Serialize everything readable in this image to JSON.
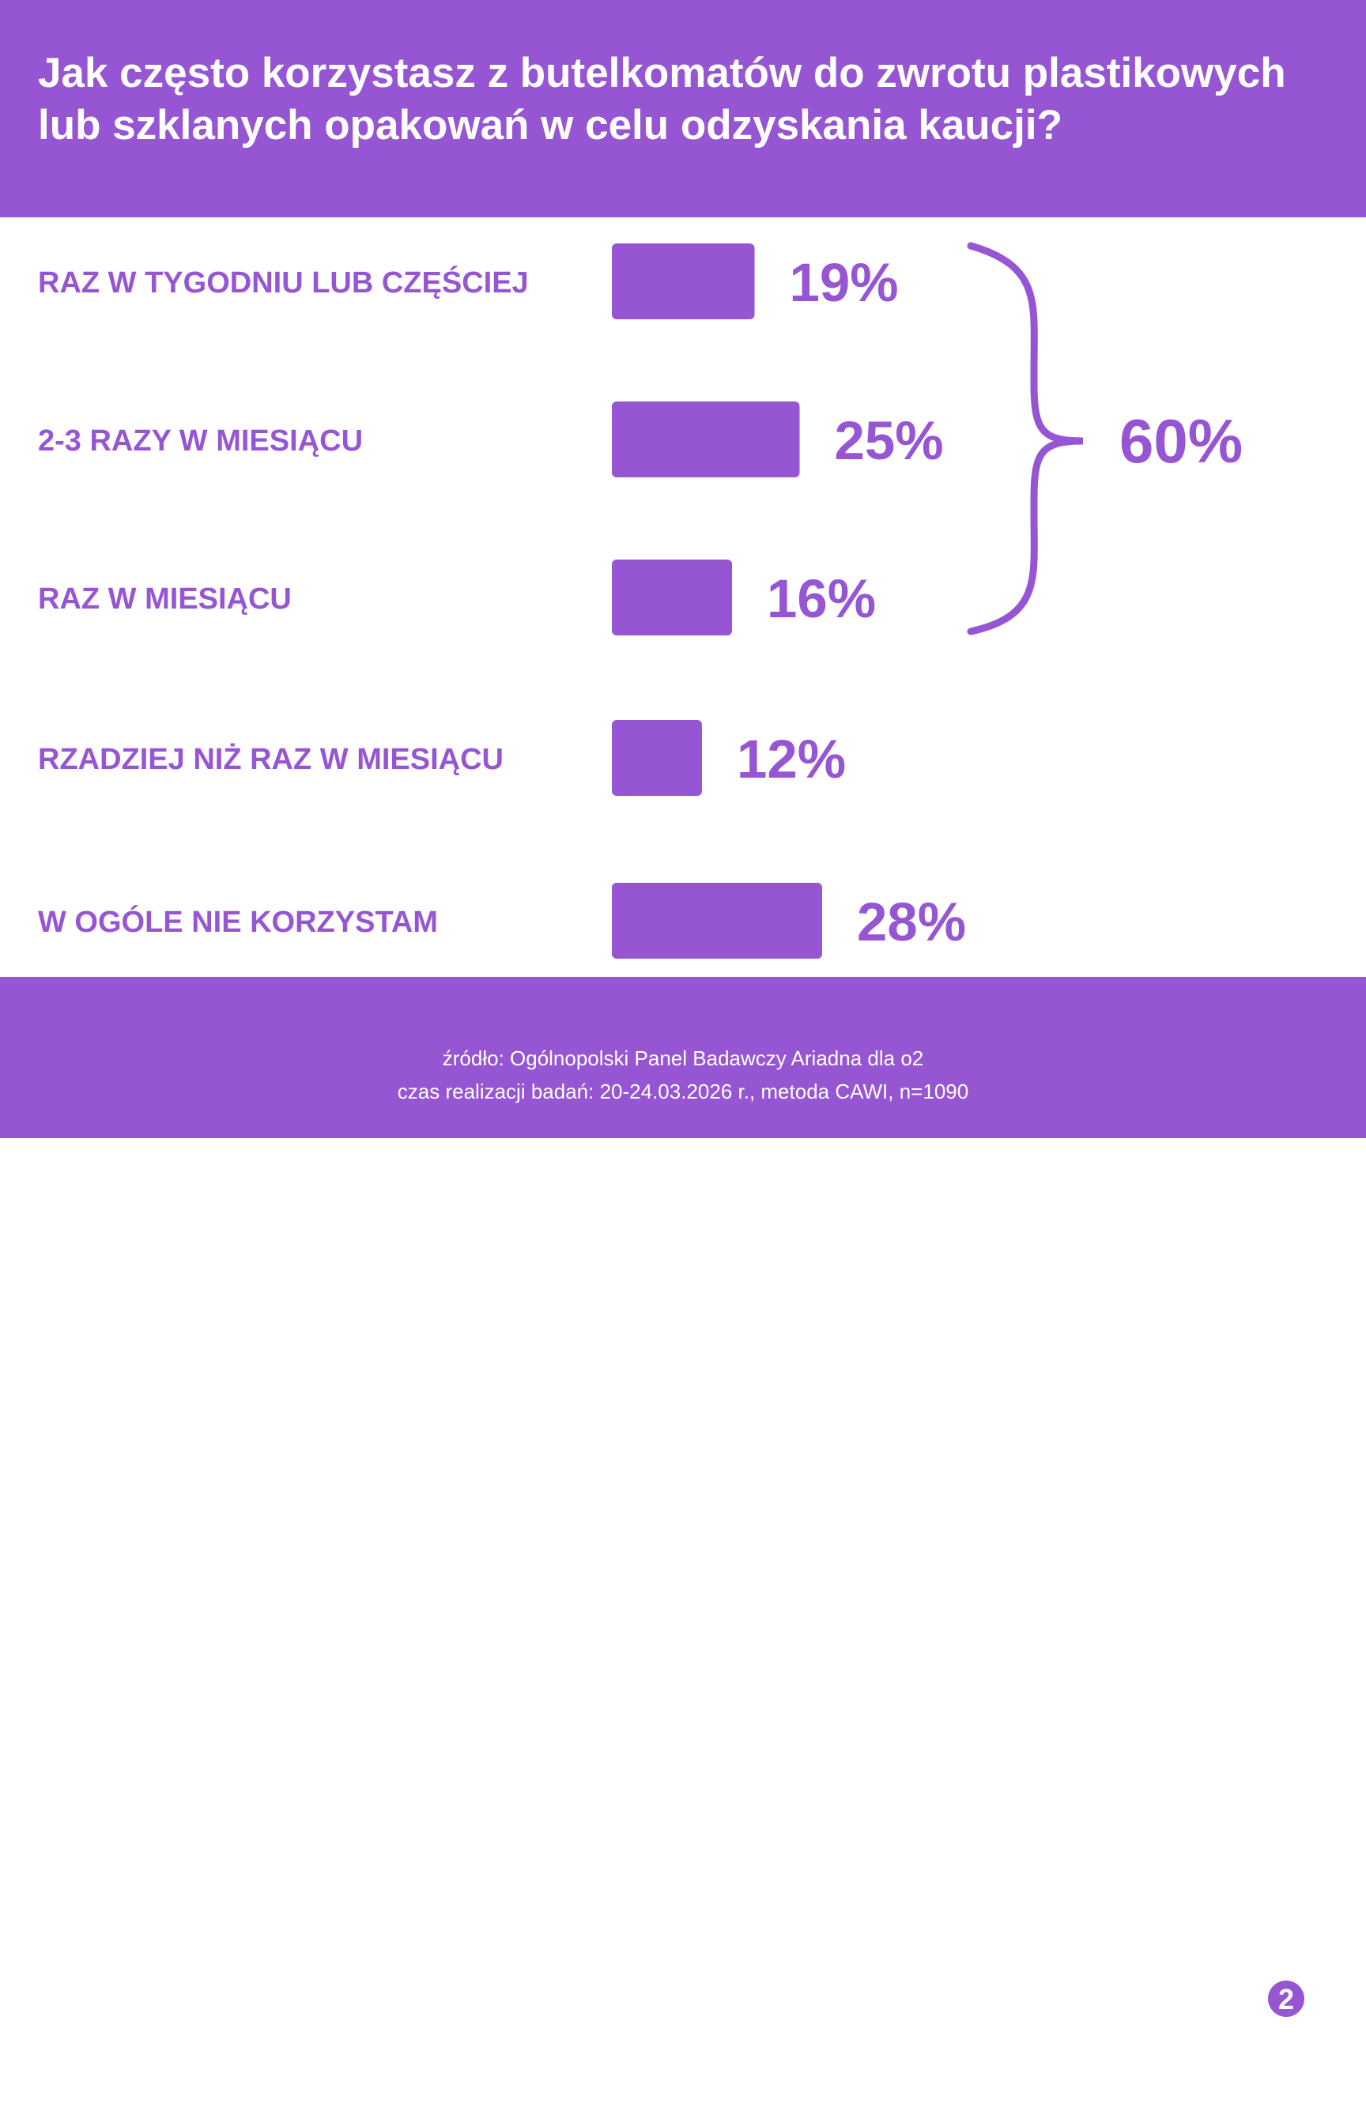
{
  "header": {
    "title_line1": "Jak często korzystasz z butelkomatów do zwrotu plastikowych",
    "title_line2": "lub szklanych opakowań w celu odzyskania kaucji?"
  },
  "chart_data": {
    "type": "bar",
    "orientation": "horizontal",
    "categories": [
      "RAZ W TYGODNIU LUB CZĘŚCIEJ",
      "2-3 RAZY W MIESIĄCU",
      "RAZ W MIESIĄCU",
      "RZADZIEJ NIŻ RAZ W MIESIĄCU",
      "W OGÓLE NIE KORZYSTAM"
    ],
    "values": [
      19,
      25,
      16,
      12,
      28
    ],
    "value_labels": [
      "19%",
      "25%",
      "16%",
      "12%",
      "28%"
    ],
    "unit": "%",
    "grid": false,
    "annotation": {
      "type": "brace",
      "covers_categories": [
        0,
        1,
        2
      ],
      "value": 60,
      "label": "60%"
    }
  },
  "footer": {
    "source_line1": "źródło: Ogólnopolski Panel Badawczy Ariadna dla o2",
    "source_line2": "czas realizacji badań: 20-24.03.2026 r., metoda CAWI, n=1090",
    "logo_superscript": "2"
  },
  "colors": {
    "brand": "#9656d3",
    "text_on_brand": "#ffffff",
    "background": "#ffffff"
  }
}
